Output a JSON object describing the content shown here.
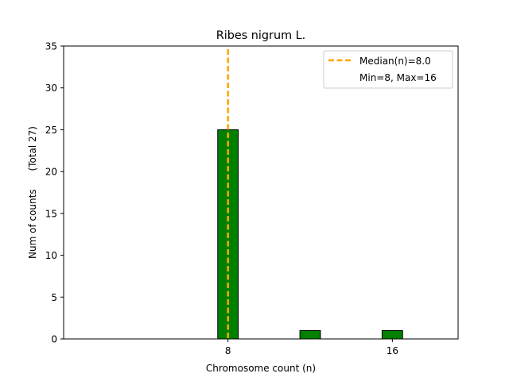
{
  "chart_data": {
    "type": "bar",
    "title": "Ribes nigrum L.",
    "xlabel": "Chromosome count (n)",
    "ylabel": "Num of counts      (Total 27)",
    "x": [
      8,
      12,
      16
    ],
    "values": [
      25,
      1,
      1
    ],
    "xlim": [
      0.0,
      19.2
    ],
    "ylim": [
      0,
      35
    ],
    "xticks": [
      8,
      16
    ],
    "yticks": [
      0,
      5,
      10,
      15,
      20,
      25,
      30,
      35
    ],
    "bar_color": "#008000",
    "bar_edge_color": "#000000",
    "median": 8.0,
    "median_color": "#ffa500",
    "legend": {
      "position": "top-right",
      "entries": [
        "Median(n)=8.0",
        "Min=8, Max=16"
      ]
    }
  }
}
